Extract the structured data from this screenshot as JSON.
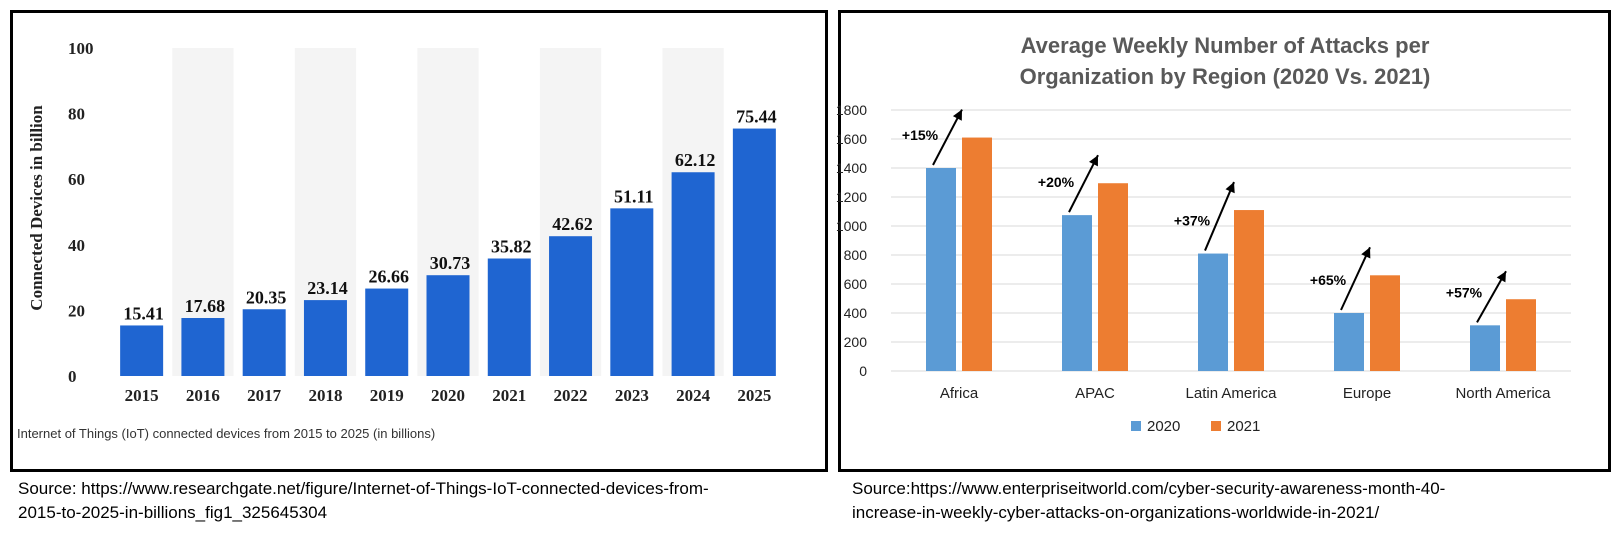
{
  "chart_data": [
    {
      "type": "bar",
      "title": "",
      "caption": "Internet of Things (IoT) connected devices from 2015 to 2025 (in billions)",
      "xlabel": "",
      "ylabel": "Connected Devices in billion",
      "ylim": [
        0,
        100
      ],
      "yticks": [
        "0",
        "20",
        "40",
        "60",
        "80",
        "100"
      ],
      "categories": [
        "2015",
        "2016",
        "2017",
        "2018",
        "2019",
        "2020",
        "2021",
        "2022",
        "2023",
        "2024",
        "2025"
      ],
      "values": [
        15.41,
        17.68,
        20.35,
        23.14,
        26.66,
        30.73,
        35.82,
        42.62,
        51.11,
        62.12,
        75.44
      ],
      "value_labels": [
        "15.41",
        "17.68",
        "20.35",
        "23.14",
        "26.66",
        "30.73",
        "35.82",
        "42.62",
        "51.11",
        "62.12",
        "75.44"
      ],
      "bar_color": "#1f65d1",
      "grid": false
    },
    {
      "type": "bar",
      "title": "Average Weekly Number of Attacks per Organization by Region (2020 Vs. 2021)",
      "title_lines": [
        "Average Weekly Number of Attacks per",
        "Organization by Region (2020 Vs. 2021)"
      ],
      "xlabel": "",
      "ylabel": "",
      "ylim": [
        0,
        1800
      ],
      "yticks": [
        "0",
        "200",
        "400",
        "600",
        "800",
        "1000",
        "1200",
        "1400",
        "1600",
        "1800"
      ],
      "categories": [
        "Africa",
        "APAC",
        "Latin America",
        "Europe",
        "North America"
      ],
      "series": [
        {
          "name": "2020",
          "values": [
            1400,
            1075,
            810,
            400,
            315
          ],
          "color": "#5b9bd5"
        },
        {
          "name": "2021",
          "values": [
            1610,
            1295,
            1110,
            660,
            495
          ],
          "color": "#ed7d31"
        }
      ],
      "annotations": [
        "+15%",
        "+20%",
        "+37%",
        "+65%",
        "+57%"
      ],
      "legend": "bottom",
      "grid": true
    }
  ],
  "sources": {
    "left": "Source: https://www.researchgate.net/figure/Internet-of-Things-IoT-connected-devices-from-\n2015-to-2025-in-billions_fig1_325645304",
    "right": "Source:https://www.enterpriseitworld.com/cyber-security-awareness-month-40-\nincrease-in-weekly-cyber-attacks-on-organizations-worldwide-in-2021/"
  }
}
